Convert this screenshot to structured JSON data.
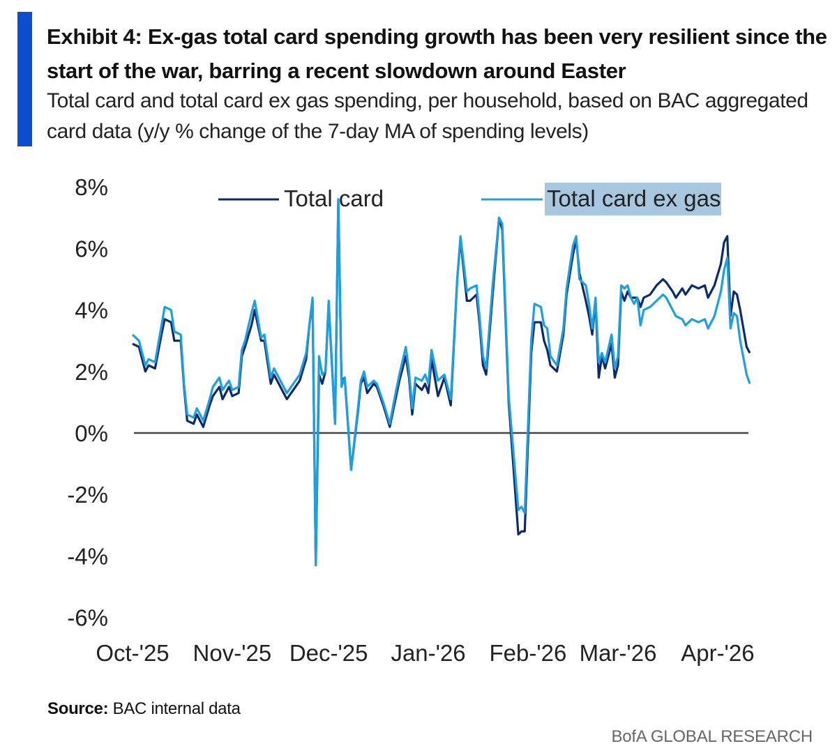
{
  "header": {
    "title": "Exhibit 4: Ex-gas total card spending growth has been very resilient since the start of the war, barring a recent slowdown around Easter",
    "subtitle": "Total card and total card ex gas spending, per household, based on BAC aggregated card data (y/y % change of the 7-day MA of spending levels)"
  },
  "footer": {
    "source_label": "Source:",
    "source_text": "BAC internal data",
    "brand": "BofA GLOBAL RESEARCH"
  },
  "colors": {
    "accent": "#0b4fd0",
    "total_card": "#0a2a6e",
    "total_card_ex_gas": "#1ba1e2",
    "legend_highlight": "#a7c7df",
    "zero_line": "#444444"
  },
  "chart_data": {
    "type": "line",
    "title": "",
    "xlabel": "",
    "ylabel": "",
    "ylim": [
      -6,
      8
    ],
    "yticks": [
      8,
      6,
      4,
      2,
      0,
      -2,
      -4,
      -6
    ],
    "ytick_labels": [
      "8%",
      "6%",
      "4%",
      "2%",
      "0%",
      "-2%",
      "-4%",
      "-6%"
    ],
    "xlim": [
      "2025-10-01",
      "2026-04-11"
    ],
    "xticks": [
      "2025-10-01",
      "2025-11-01",
      "2025-12-01",
      "2026-01-01",
      "2026-02-01",
      "2026-03-01",
      "2026-04-01"
    ],
    "xtick_labels": [
      "Oct-'25",
      "Nov-'25",
      "Dec-'25",
      "Jan-'26",
      "Feb-'26",
      "Mar-'26",
      "Apr-'26"
    ],
    "grid": false,
    "zero_line": true,
    "legend_position": "top",
    "x": [
      "2025-10-01",
      "2025-10-03",
      "2025-10-05",
      "2025-10-06",
      "2025-10-08",
      "2025-10-10",
      "2025-10-11",
      "2025-10-13",
      "2025-10-14",
      "2025-10-16",
      "2025-10-17",
      "2025-10-18",
      "2025-10-20",
      "2025-10-21",
      "2025-10-23",
      "2025-10-25",
      "2025-10-26",
      "2025-10-28",
      "2025-10-29",
      "2025-10-31",
      "2025-11-01",
      "2025-11-03",
      "2025-11-04",
      "2025-11-05",
      "2025-11-07",
      "2025-11-08",
      "2025-11-10",
      "2025-11-11",
      "2025-11-13",
      "2025-11-14",
      "2025-11-16",
      "2025-11-18",
      "2025-11-20",
      "2025-11-22",
      "2025-11-24",
      "2025-11-25",
      "2025-11-26",
      "2025-11-27",
      "2025-11-28",
      "2025-11-29",
      "2025-11-30",
      "2025-12-01",
      "2025-12-03",
      "2025-12-04",
      "2025-12-05",
      "2025-12-06",
      "2025-12-08",
      "2025-12-10",
      "2025-12-11",
      "2025-12-12",
      "2025-12-13",
      "2025-12-15",
      "2025-12-16",
      "2025-12-18",
      "2025-12-20",
      "2025-12-22",
      "2025-12-23",
      "2025-12-25",
      "2025-12-26",
      "2025-12-27",
      "2025-12-28",
      "2025-12-30",
      "2025-12-31",
      "2026-01-01",
      "2026-01-02",
      "2026-01-04",
      "2026-01-06",
      "2026-01-08",
      "2026-01-10",
      "2026-01-11",
      "2026-01-13",
      "2026-01-14",
      "2026-01-16",
      "2026-01-17",
      "2026-01-18",
      "2026-01-19",
      "2026-01-21",
      "2026-01-23",
      "2026-01-24",
      "2026-01-26",
      "2026-01-29",
      "2026-01-30",
      "2026-01-31",
      "2026-02-02",
      "2026-02-03",
      "2026-02-05",
      "2026-02-06",
      "2026-02-07",
      "2026-02-08",
      "2026-02-10",
      "2026-02-12",
      "2026-02-13",
      "2026-02-15",
      "2026-02-16",
      "2026-02-17",
      "2026-02-19",
      "2026-02-20",
      "2026-02-21",
      "2026-02-22",
      "2026-02-23",
      "2026-02-24",
      "2026-02-25",
      "2026-02-27",
      "2026-02-28",
      "2026-03-01",
      "2026-03-02",
      "2026-03-03",
      "2026-03-04",
      "2026-03-05",
      "2026-03-06",
      "2026-03-07",
      "2026-03-08",
      "2026-03-09",
      "2026-03-11",
      "2026-03-13",
      "2026-03-15",
      "2026-03-16",
      "2026-03-18",
      "2026-03-19",
      "2026-03-21",
      "2026-03-22",
      "2026-03-24",
      "2026-03-26",
      "2026-03-28",
      "2026-03-29",
      "2026-03-31",
      "2026-04-02",
      "2026-04-03",
      "2026-04-04",
      "2026-04-05",
      "2026-04-06",
      "2026-04-07",
      "2026-04-08",
      "2026-04-10",
      "2026-04-11"
    ],
    "series": [
      {
        "name": "Total card",
        "color": "#0a2a6e",
        "values": [
          2.9,
          2.8,
          2.0,
          2.2,
          2.1,
          3.2,
          3.7,
          3.6,
          3.0,
          3.0,
          1.5,
          0.4,
          0.3,
          0.6,
          0.2,
          0.9,
          1.2,
          1.5,
          1.1,
          1.5,
          1.2,
          1.3,
          2.5,
          2.8,
          3.5,
          4.0,
          3.0,
          3.0,
          1.6,
          1.9,
          1.5,
          1.1,
          1.4,
          1.7,
          2.4,
          3.5,
          4.3,
          -4.3,
          1.9,
          1.6,
          2.0,
          4.2,
          0.3,
          7.6,
          1.7,
          1.8,
          -1.2,
          0.6,
          1.6,
          1.8,
          1.3,
          1.6,
          1.5,
          0.9,
          0.2,
          1.2,
          1.7,
          2.5,
          1.8,
          0.6,
          1.6,
          1.4,
          1.6,
          1.3,
          2.4,
          1.2,
          1.8,
          0.9,
          5.0,
          6.3,
          4.3,
          4.3,
          4.5,
          3.5,
          2.2,
          1.9,
          4.5,
          7.0,
          6.6,
          1.0,
          -3.3,
          -3.2,
          -3.2,
          2.6,
          3.6,
          3.6,
          3.0,
          2.7,
          2.2,
          2.0,
          3.2,
          4.5,
          5.8,
          6.3,
          5.2,
          4.3,
          3.8,
          3.2,
          4.3,
          1.8,
          2.5,
          2.1,
          2.9,
          1.8,
          2.2,
          4.6,
          4.3,
          4.6,
          4.4,
          4.4,
          4.4,
          4.1,
          4.4,
          4.5,
          4.8,
          5.0,
          4.9,
          4.6,
          4.4,
          4.7,
          4.5,
          4.8,
          4.7,
          4.8,
          4.4,
          4.8,
          5.5,
          6.2,
          6.4,
          3.8,
          4.6,
          4.5,
          4.0,
          2.8,
          2.6
        ]
      },
      {
        "name": "Total card ex gas",
        "color": "#1ba1e2",
        "values": [
          3.2,
          3.0,
          2.2,
          2.4,
          2.3,
          3.5,
          4.1,
          4.0,
          3.3,
          3.2,
          1.6,
          0.6,
          0.5,
          0.8,
          0.4,
          1.1,
          1.5,
          1.8,
          1.4,
          1.7,
          1.4,
          1.5,
          2.7,
          3.0,
          3.9,
          4.3,
          3.1,
          3.2,
          1.8,
          2.1,
          1.7,
          1.3,
          1.6,
          1.9,
          2.6,
          3.5,
          4.4,
          -4.3,
          2.5,
          1.9,
          2.0,
          4.3,
          0.3,
          7.6,
          1.5,
          1.8,
          -1.2,
          0.7,
          1.7,
          2.0,
          1.5,
          1.7,
          1.6,
          1.0,
          0.3,
          1.4,
          1.9,
          2.8,
          2.0,
          0.8,
          1.8,
          1.7,
          1.9,
          1.6,
          2.7,
          1.7,
          1.9,
          1.1,
          5.0,
          6.4,
          4.6,
          4.7,
          4.8,
          3.7,
          2.5,
          2.1,
          4.8,
          7.0,
          6.8,
          1.2,
          -2.5,
          -2.4,
          -2.6,
          3.0,
          4.2,
          4.1,
          3.5,
          3.4,
          2.5,
          2.2,
          3.4,
          4.7,
          6.1,
          6.4,
          5.0,
          4.8,
          4.2,
          3.4,
          4.4,
          2.3,
          2.6,
          2.3,
          3.2,
          2.1,
          2.5,
          4.8,
          4.7,
          4.8,
          4.4,
          4.2,
          4.4,
          3.5,
          4.0,
          4.1,
          4.3,
          4.5,
          4.4,
          4.0,
          3.8,
          3.7,
          3.5,
          3.7,
          3.6,
          3.7,
          3.4,
          3.8,
          4.6,
          5.3,
          5.7,
          3.4,
          3.9,
          3.8,
          3.0,
          1.9,
          1.6
        ]
      }
    ]
  }
}
